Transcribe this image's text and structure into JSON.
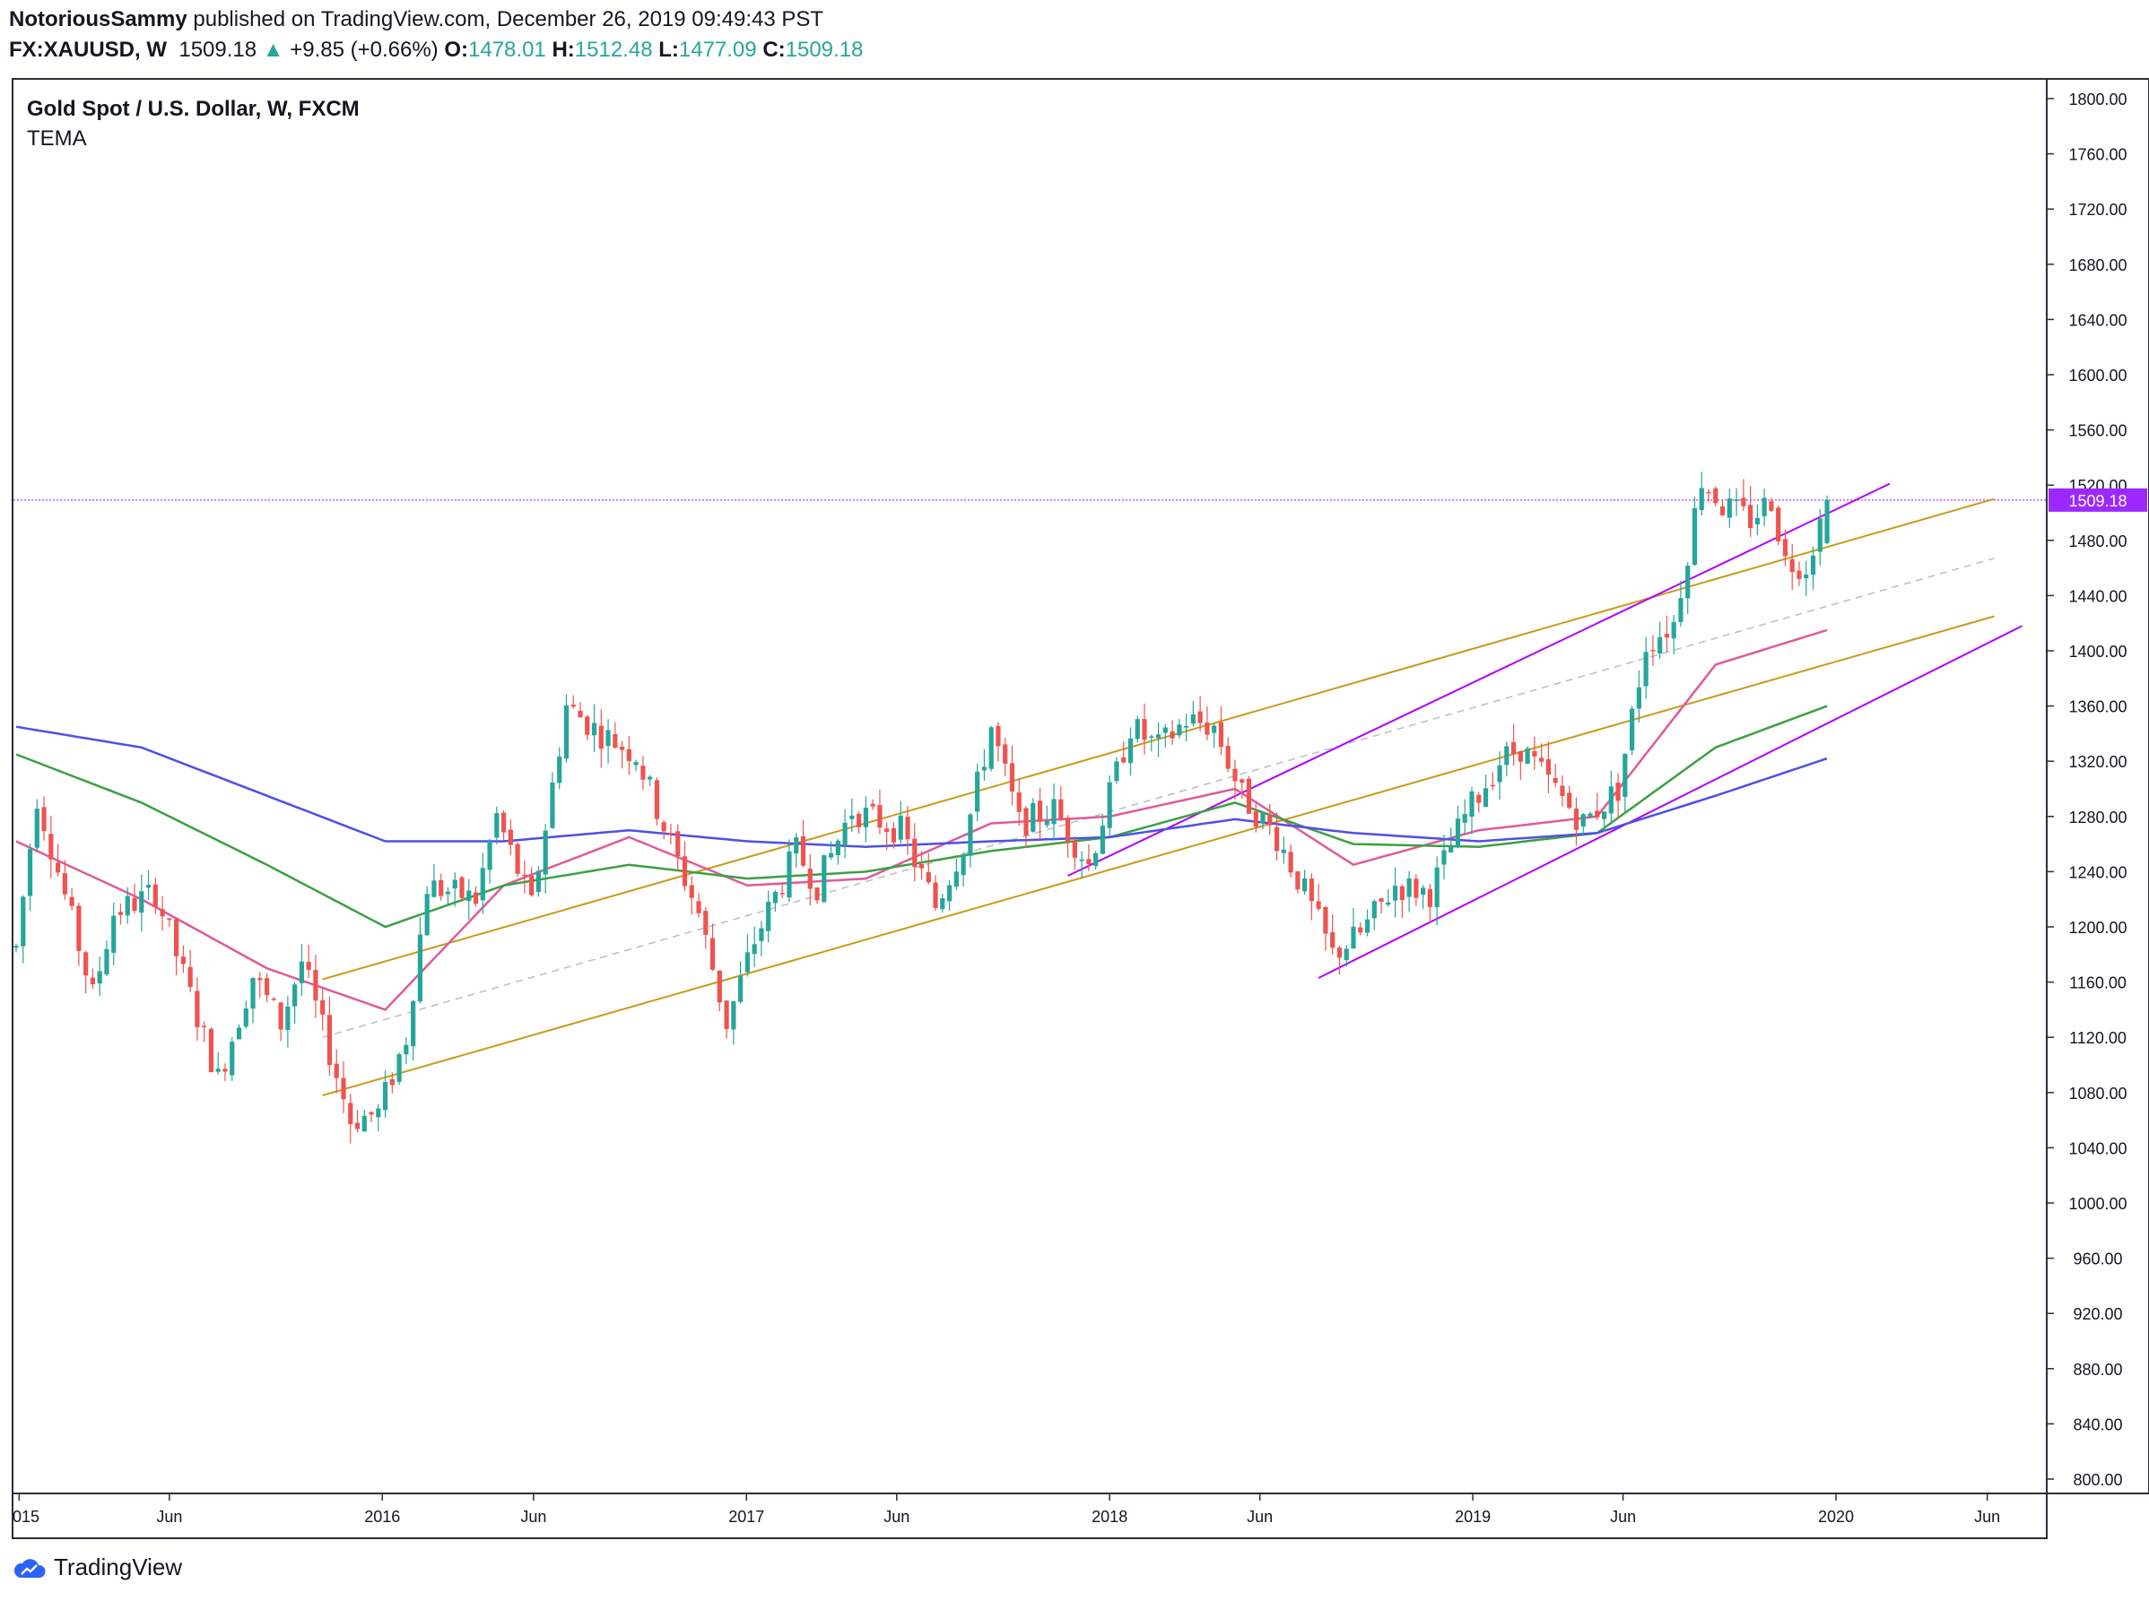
{
  "header": {
    "author": "NotoriousSammy",
    "published": "published on TradingView.com, December 26, 2019 09:49:43 PST",
    "symbol": "FX:XAUUSD, W",
    "last": "1509.18",
    "change_arrow": "▲",
    "change": "+9.85 (+0.66%)",
    "o_label": "O:",
    "o_value": "1478.01",
    "h_label": "H:",
    "h_value": "1512.48",
    "l_label": "L:",
    "l_value": "1477.09",
    "c_label": "C:",
    "c_value": "1509.18"
  },
  "footer": {
    "logo_icon": "tradingview-cloud-icon",
    "brand": "TradingView"
  },
  "chart_data": {
    "type": "candlestick",
    "title": "Gold Spot / U.S. Dollar, W, FXCM",
    "indicator": "TEMA",
    "last_price_label": "1509.18",
    "y_ticks": [
      "1800.00",
      "1760.00",
      "1720.00",
      "1680.00",
      "1640.00",
      "1600.00",
      "1560.00",
      "1520.00",
      "1480.00",
      "1440.00",
      "1400.00",
      "1360.00",
      "1320.00",
      "1280.00",
      "1240.00",
      "1200.00",
      "1160.00",
      "1120.00",
      "1080.00",
      "1040.00",
      "1000.00",
      "960.00",
      "920.00",
      "880.00",
      "840.00",
      "800.00"
    ],
    "ylim": [
      800,
      1800
    ],
    "x_ticks": [
      {
        "label": "015",
        "date": "2015-01-01"
      },
      {
        "label": "Jun",
        "date": "2015-06-01"
      },
      {
        "label": "2016",
        "date": "2016-01-01"
      },
      {
        "label": "Jun",
        "date": "2016-06-01"
      },
      {
        "label": "2017",
        "date": "2017-01-01"
      },
      {
        "label": "Jun",
        "date": "2017-06-01"
      },
      {
        "label": "2018",
        "date": "2018-01-01"
      },
      {
        "label": "Jun",
        "date": "2018-06-01"
      },
      {
        "label": "2019",
        "date": "2019-01-01"
      },
      {
        "label": "Jun",
        "date": "2019-06-01"
      },
      {
        "label": "2020",
        "date": "2020-01-01"
      },
      {
        "label": "Jun",
        "date": "2020-06-01"
      }
    ],
    "price_path": [
      [
        "2014-12-29",
        1185
      ],
      [
        "2015-01-19",
        1295
      ],
      [
        "2015-03-16",
        1150
      ],
      [
        "2015-04-06",
        1210
      ],
      [
        "2015-05-18",
        1225
      ],
      [
        "2015-06-08",
        1180
      ],
      [
        "2015-07-20",
        1090
      ],
      [
        "2015-08-24",
        1165
      ],
      [
        "2015-09-21",
        1130
      ],
      [
        "2015-10-12",
        1175
      ],
      [
        "2015-11-30",
        1060
      ],
      [
        "2015-12-28",
        1065
      ],
      [
        "2016-01-25",
        1120
      ],
      [
        "2016-02-15",
        1230
      ],
      [
        "2016-04-04",
        1220
      ],
      [
        "2016-04-25",
        1280
      ],
      [
        "2016-05-30",
        1215
      ],
      [
        "2016-07-04",
        1360
      ],
      [
        "2016-08-08",
        1340
      ],
      [
        "2016-09-12",
        1325
      ],
      [
        "2016-10-17",
        1260
      ],
      [
        "2016-11-14",
        1210
      ],
      [
        "2016-12-12",
        1130
      ],
      [
        "2017-01-09",
        1190
      ],
      [
        "2017-02-20",
        1255
      ],
      [
        "2017-03-13",
        1230
      ],
      [
        "2017-04-17",
        1285
      ],
      [
        "2017-06-05",
        1270
      ],
      [
        "2017-07-10",
        1215
      ],
      [
        "2017-08-07",
        1260
      ],
      [
        "2017-09-04",
        1345
      ],
      [
        "2017-10-02",
        1275
      ],
      [
        "2017-11-06",
        1285
      ],
      [
        "2017-12-11",
        1245
      ],
      [
        "2018-01-22",
        1345
      ],
      [
        "2018-02-19",
        1330
      ],
      [
        "2018-03-19",
        1350
      ],
      [
        "2018-04-16",
        1345
      ],
      [
        "2018-05-14",
        1295
      ],
      [
        "2018-06-18",
        1265
      ],
      [
        "2018-07-16",
        1225
      ],
      [
        "2018-08-13",
        1180
      ],
      [
        "2018-09-10",
        1195
      ],
      [
        "2018-10-15",
        1230
      ],
      [
        "2018-11-19",
        1225
      ],
      [
        "2018-12-24",
        1280
      ],
      [
        "2019-01-28",
        1320
      ],
      [
        "2019-02-18",
        1330
      ],
      [
        "2019-03-18",
        1305
      ],
      [
        "2019-04-22",
        1275
      ],
      [
        "2019-05-27",
        1300
      ],
      [
        "2019-06-24",
        1405
      ],
      [
        "2019-07-22",
        1420
      ],
      [
        "2019-08-19",
        1525
      ],
      [
        "2019-09-09",
        1505
      ],
      [
        "2019-10-07",
        1495
      ],
      [
        "2019-10-28",
        1510
      ],
      [
        "2019-11-11",
        1465
      ],
      [
        "2019-12-02",
        1462
      ],
      [
        "2019-12-23",
        1509
      ]
    ],
    "price_line_at": 1509.18,
    "trendlines": [
      {
        "color": "#c99a1a",
        "from": [
          "2015-11-02",
          1162
        ],
        "to": [
          "2020-06-08",
          1510
        ]
      },
      {
        "color": "#c99a1a",
        "from": [
          "2015-11-02",
          1078
        ],
        "to": [
          "2020-06-08",
          1425
        ]
      },
      {
        "color": "#bdbdbd",
        "dashed": true,
        "from": [
          "2015-11-02",
          1120
        ],
        "to": [
          "2020-06-08",
          1467
        ]
      },
      {
        "color": "#b000ff",
        "from": [
          "2017-11-20",
          1237
        ],
        "to": [
          "2020-02-24",
          1521
        ]
      },
      {
        "color": "#b000ff",
        "from": [
          "2018-07-30",
          1163
        ],
        "to": [
          "2020-07-06",
          1418
        ]
      }
    ],
    "series": [
      {
        "name": "",
        "color": "#e05a9a",
        "points": [
          [
            "2014-12-29",
            1262
          ],
          [
            "2015-05-04",
            1220
          ],
          [
            "2015-09-07",
            1170
          ],
          [
            "2016-01-04",
            1140
          ],
          [
            "2016-05-02",
            1230
          ],
          [
            "2016-09-05",
            1265
          ],
          [
            "2017-01-02",
            1230
          ],
          [
            "2017-05-01",
            1235
          ],
          [
            "2017-09-04",
            1275
          ],
          [
            "2018-01-01",
            1280
          ],
          [
            "2018-05-07",
            1300
          ],
          [
            "2018-09-03",
            1245
          ],
          [
            "2019-01-07",
            1270
          ],
          [
            "2019-05-06",
            1280
          ],
          [
            "2019-09-02",
            1390
          ],
          [
            "2019-12-23",
            1415
          ]
        ]
      },
      {
        "name": "",
        "color": "#3ba041",
        "points": [
          [
            "2014-12-29",
            1325
          ],
          [
            "2015-05-04",
            1290
          ],
          [
            "2015-09-07",
            1245
          ],
          [
            "2016-01-04",
            1200
          ],
          [
            "2016-05-02",
            1230
          ],
          [
            "2016-09-05",
            1245
          ],
          [
            "2017-01-02",
            1235
          ],
          [
            "2017-05-01",
            1240
          ],
          [
            "2017-09-04",
            1255
          ],
          [
            "2018-01-01",
            1265
          ],
          [
            "2018-05-07",
            1290
          ],
          [
            "2018-09-03",
            1260
          ],
          [
            "2019-01-07",
            1258
          ],
          [
            "2019-05-06",
            1268
          ],
          [
            "2019-09-02",
            1330
          ],
          [
            "2019-12-23",
            1360
          ]
        ]
      },
      {
        "name": "",
        "color": "#4e50e5",
        "points": [
          [
            "2014-12-29",
            1345
          ],
          [
            "2015-05-04",
            1330
          ],
          [
            "2015-09-07",
            1295
          ],
          [
            "2016-01-04",
            1262
          ],
          [
            "2016-05-02",
            1262
          ],
          [
            "2016-09-05",
            1270
          ],
          [
            "2017-01-02",
            1262
          ],
          [
            "2017-05-01",
            1258
          ],
          [
            "2017-09-04",
            1262
          ],
          [
            "2018-01-01",
            1265
          ],
          [
            "2018-05-07",
            1278
          ],
          [
            "2018-09-03",
            1268
          ],
          [
            "2019-01-07",
            1262
          ],
          [
            "2019-05-06",
            1268
          ],
          [
            "2019-09-02",
            1295
          ],
          [
            "2019-12-23",
            1322
          ]
        ]
      }
    ],
    "last_candles": [
      {
        "date": "2019-12-23",
        "open": 1478.01,
        "high": 1512.48,
        "low": 1477.09,
        "close": 1509.18
      }
    ],
    "colors": {
      "up": "#26a69a",
      "down": "#ef5350",
      "price_line": "#b000ff",
      "last_label_bg": "#9c27ff"
    }
  }
}
